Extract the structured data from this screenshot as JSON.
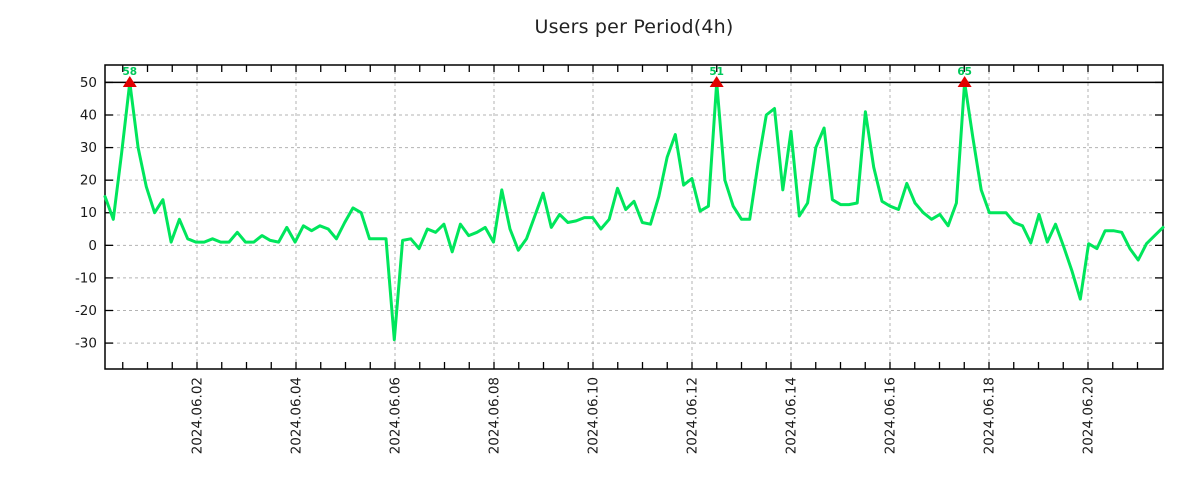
{
  "window": {
    "background": "#ffffff"
  },
  "chart_data": {
    "type": "line",
    "title": "Users per Period(4h)",
    "period_interval": "4h",
    "x_tick_labels": [
      "2024.06.02",
      "2024.06.04",
      "2024.06.06",
      "2024.06.08",
      "2024.06.10",
      "2024.06.12",
      "2024.06.14",
      "2024.06.16",
      "2024.06.18",
      "2024.06.20"
    ],
    "y_ticks": [
      50,
      40,
      30,
      20,
      10,
      0,
      -10,
      -20,
      -30
    ],
    "y_tick_labels": [
      "50",
      "40",
      "30",
      "20",
      "10",
      "0",
      "-10",
      "-20",
      "-30"
    ],
    "ylim": [
      -38,
      55.4
    ],
    "clip_line_value": 50,
    "minor_ticks_per_major_interval": 3,
    "grid": {
      "on": true,
      "style": "dashed",
      "color": "#b3b3b3",
      "clip_line_color": "#000000",
      "border_color": "#000000"
    },
    "legend_position": "none",
    "series": [
      {
        "name": "users",
        "color": "#00e65c",
        "values": [
          15,
          8,
          28,
          58,
          30,
          18,
          10,
          14,
          1,
          8,
          2,
          1,
          1,
          2,
          1,
          1,
          4,
          1,
          1,
          3,
          1.5,
          1,
          5.5,
          1,
          6,
          4.5,
          6,
          5,
          2,
          7,
          11.5,
          10,
          2,
          2,
          2,
          -29,
          1.5,
          2,
          -1,
          5,
          4,
          6.5,
          -2,
          6.5,
          3,
          4,
          5.5,
          1,
          17,
          5,
          -1.5,
          2,
          9,
          16,
          5.5,
          9.5,
          7,
          7.5,
          8.5,
          8.5,
          5,
          8,
          17.5,
          11,
          13.5,
          7,
          6.5,
          15,
          27,
          34,
          18.5,
          20.5,
          10.5,
          12,
          51,
          20,
          12,
          8,
          8,
          25,
          40,
          42,
          17,
          35,
          9,
          13,
          30,
          36,
          14,
          12.5,
          12.5,
          13,
          41,
          24,
          13.5,
          12,
          11,
          19,
          13,
          10,
          8,
          9.5,
          6,
          13,
          65,
          33,
          17,
          10,
          10,
          10,
          7,
          6,
          0.7,
          9.5,
          1,
          6.5,
          -0.5,
          -8,
          -16.5,
          0.5,
          -1,
          4.5,
          4.5,
          4,
          -1,
          -4.5,
          0.5,
          3,
          5.5
        ]
      }
    ],
    "peak_annotations": [
      {
        "index": 3,
        "label": "58"
      },
      {
        "index": 74,
        "label": "51"
      },
      {
        "index": 104,
        "label": "65"
      }
    ],
    "marker_color": "#e10000",
    "annotation_color": "#00c85a",
    "text_color": "#1a1a1a"
  }
}
